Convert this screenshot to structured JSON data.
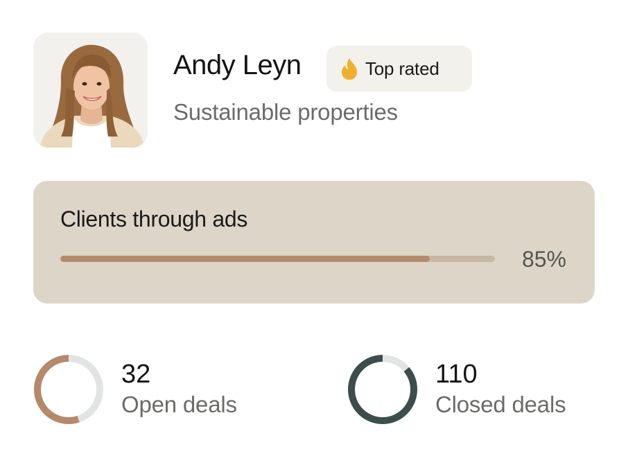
{
  "profile": {
    "name": "Andy Leyn",
    "subtitle": "Sustainable properties",
    "avatar_icon": "portrait-photo",
    "badge": {
      "label": "Top rated",
      "icon": "flame-icon",
      "icon_color": "#f0b02c"
    }
  },
  "progress_card": {
    "title": "Clients through ads",
    "value_text": "85%",
    "value": 0.85,
    "colors": {
      "card": "#ddd6c8",
      "fill": "#b48a6a",
      "track": "#c7b8a5"
    }
  },
  "stats": {
    "open": {
      "value": "32",
      "label": "Open deals",
      "ring_fraction": 0.55,
      "ring_color": "#b48a6a",
      "ring_track_color": "#e2e4e4"
    },
    "closed": {
      "value": "110",
      "label": "Closed deals",
      "ring_fraction": 0.86,
      "ring_color": "#3c4e4c",
      "ring_track_color": "#e2e4e4"
    }
  }
}
